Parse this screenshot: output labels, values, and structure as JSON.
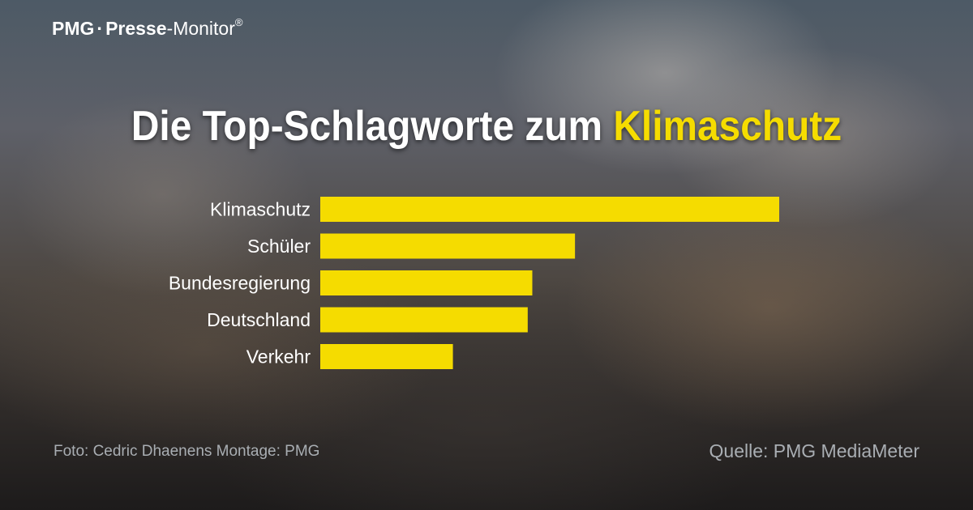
{
  "brand": {
    "part1": "PMG",
    "separator": "·",
    "part2": "Presse",
    "part3": "-Monitor",
    "registered": "®"
  },
  "title": {
    "prefix": "Die Top-Schlagworte zum ",
    "highlight": "Klimaschutz"
  },
  "chart_data": {
    "type": "bar",
    "orientation": "horizontal",
    "categories": [
      "Klimaschutz",
      "Schüler",
      "Bundesregierung",
      "Deutschland",
      "Verkehr"
    ],
    "values": [
      100,
      55.5,
      46.2,
      45.2,
      28.9
    ],
    "bar_color": "#f5dc00",
    "grid": false,
    "legend": "none"
  },
  "footer": {
    "credit": "Foto: Cedric Dhaenens  Montage: PMG",
    "source": "Quelle: PMG MediaMeter"
  },
  "colors": {
    "accent": "#f5dc00",
    "text": "#ffffff",
    "muted": "#a9aeb3"
  }
}
